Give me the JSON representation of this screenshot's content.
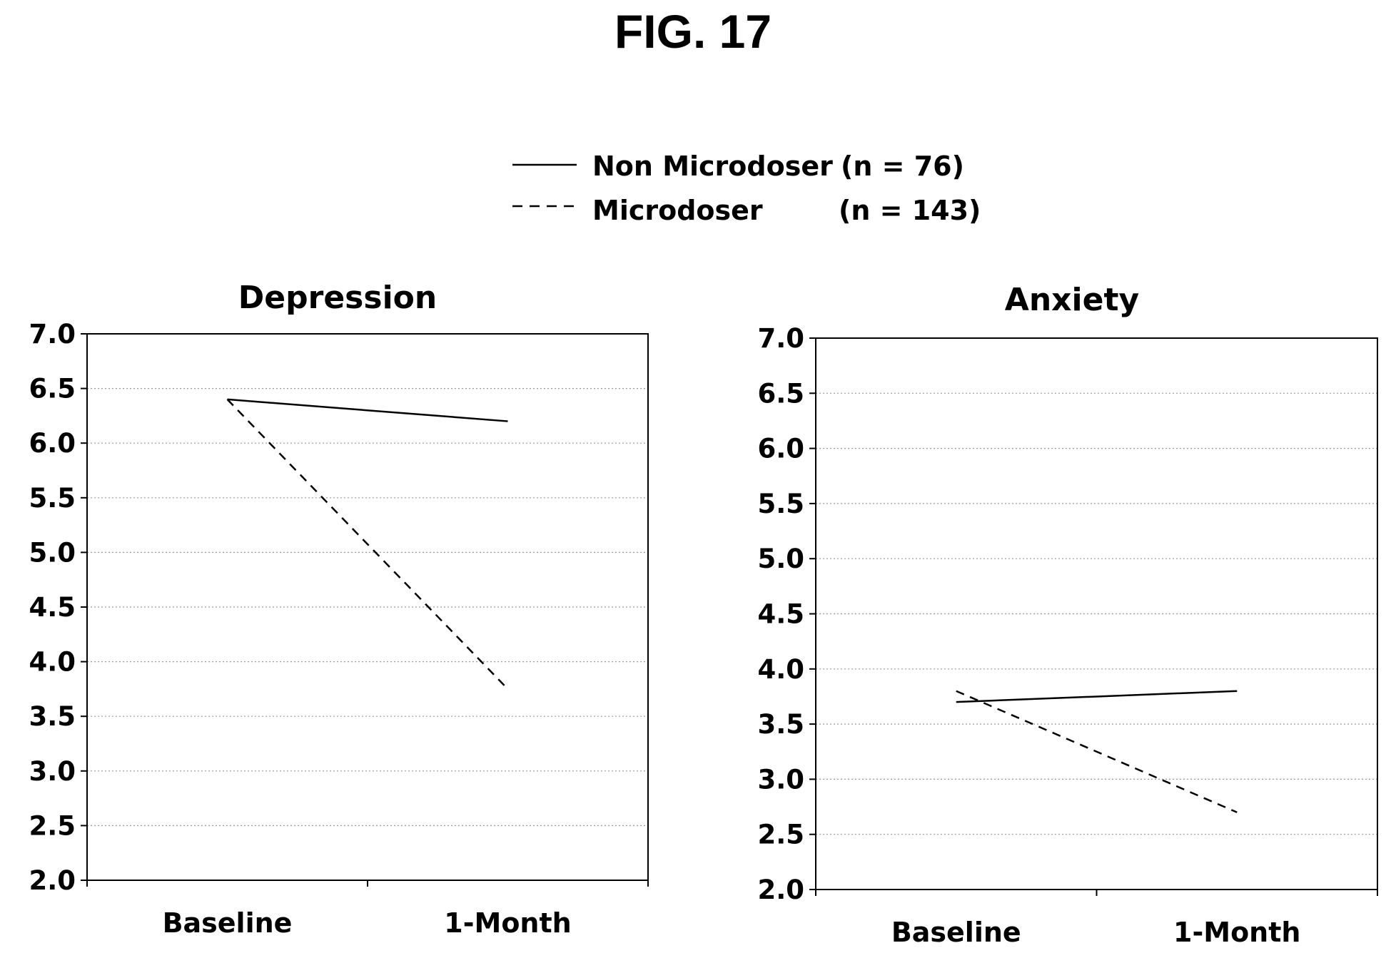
{
  "figure_title": "FIG. 17",
  "legend": [
    {
      "label": "Non Microdoser",
      "n": "(n = 76)",
      "dash": "solid"
    },
    {
      "label": "Microdoser",
      "n": "(n = 143)",
      "dash": "dashed"
    }
  ],
  "chart_data": [
    {
      "type": "line",
      "title": "Depression",
      "xlabel": "",
      "ylabel": "",
      "categories": [
        "Baseline",
        "1-Month"
      ],
      "ylim": [
        2.0,
        7.0
      ],
      "yticks": [
        "2.0",
        "2.5",
        "3.0",
        "3.5",
        "4.0",
        "4.5",
        "5.0",
        "5.5",
        "6.0",
        "6.5",
        "7.0"
      ],
      "grid": true,
      "series": [
        {
          "name": "Non Microdoser",
          "values": [
            6.4,
            6.2
          ],
          "dash": "solid"
        },
        {
          "name": "Microdoser",
          "values": [
            6.4,
            3.75
          ],
          "dash": "dashed"
        }
      ]
    },
    {
      "type": "line",
      "title": "Anxiety",
      "xlabel": "",
      "ylabel": "",
      "categories": [
        "Baseline",
        "1-Month"
      ],
      "ylim": [
        2.0,
        7.0
      ],
      "yticks": [
        "2.0",
        "2.5",
        "3.0",
        "3.5",
        "4.0",
        "4.5",
        "5.0",
        "5.5",
        "6.0",
        "6.5",
        "7.0"
      ],
      "grid": true,
      "series": [
        {
          "name": "Non Microdoser",
          "values": [
            3.7,
            3.8
          ],
          "dash": "solid"
        },
        {
          "name": "Microdoser",
          "values": [
            3.8,
            2.7
          ],
          "dash": "dashed"
        }
      ]
    }
  ]
}
